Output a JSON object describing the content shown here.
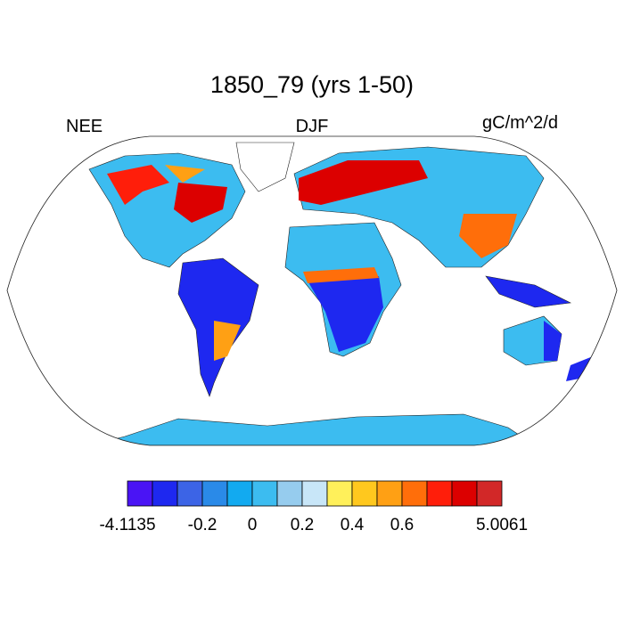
{
  "title": "1850_79 (yrs 1-50)",
  "left_label": "NEE",
  "center_label": "DJF",
  "right_label": "gC/m^2/d",
  "colorbar": {
    "colors": [
      "#4a14f5",
      "#1e28f0",
      "#3c64e6",
      "#2a8ae8",
      "#12aaf0",
      "#3cbcf0",
      "#96ccee",
      "#c8e6f8",
      "#fff05a",
      "#ffc81e",
      "#ffa014",
      "#ff6e0a",
      "#ff1e0a",
      "#dc0000",
      "#d22828"
    ],
    "labels": [
      "-4.1135",
      null,
      null,
      "-0.2",
      null,
      "0",
      null,
      "0.2",
      null,
      "0.4",
      null,
      "0.6",
      null,
      null,
      null,
      "5.0061"
    ]
  }
}
